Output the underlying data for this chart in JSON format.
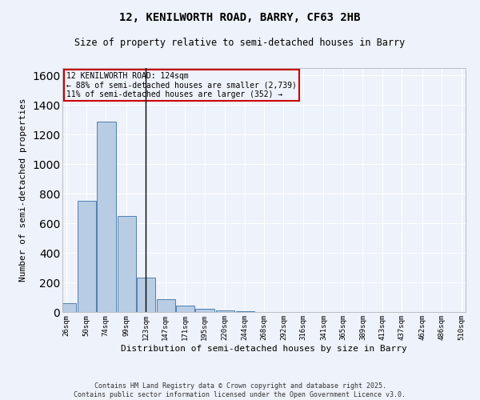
{
  "title1": "12, KENILWORTH ROAD, BARRY, CF63 2HB",
  "title2": "Size of property relative to semi-detached houses in Barry",
  "xlabel": "Distribution of semi-detached houses by size in Barry",
  "ylabel": "Number of semi-detached properties",
  "annotation_line1": "12 KENILWORTH ROAD: 124sqm",
  "annotation_line2": "← 88% of semi-detached houses are smaller (2,739)",
  "annotation_line3": "11% of semi-detached houses are larger (352) →",
  "bins": [
    26,
    50,
    74,
    99,
    123,
    147,
    171,
    195,
    220,
    244,
    268,
    292,
    316,
    341,
    365,
    389,
    413,
    437,
    462,
    486,
    510
  ],
  "counts": [
    60,
    750,
    1290,
    650,
    230,
    85,
    45,
    20,
    10,
    5,
    0,
    0,
    0,
    0,
    0,
    0,
    0,
    0,
    0,
    0
  ],
  "bar_color": "#b8cce4",
  "bar_edge_color": "#5080b0",
  "vline_x": 123,
  "annotation_box_color": "#cc0000",
  "background_color": "#eef2fa",
  "grid_color": "#ffffff",
  "ylim": [
    0,
    1650
  ],
  "yticks": [
    0,
    200,
    400,
    600,
    800,
    1000,
    1200,
    1400,
    1600
  ],
  "footer_line1": "Contains HM Land Registry data © Crown copyright and database right 2025.",
  "footer_line2": "Contains public sector information licensed under the Open Government Licence v3.0."
}
